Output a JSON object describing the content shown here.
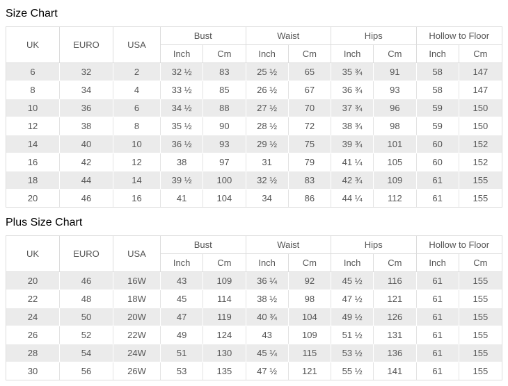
{
  "colors": {
    "page_background": "#ffffff",
    "stripe_row_background": "#ebebeb",
    "table_border": "#dcdcdc",
    "table_text": "#555555",
    "title_text": "#000000"
  },
  "tables": [
    {
      "title": "Size Chart",
      "header": {
        "uk": "UK",
        "euro": "EURO",
        "usa": "USA",
        "groups": [
          "Bust",
          "Waist",
          "Hips",
          "Hollow to Floor"
        ],
        "sub_units": [
          "Inch",
          "Cm"
        ]
      },
      "rows": [
        [
          "6",
          "32",
          "2",
          "32 ½",
          "83",
          "25 ½",
          "65",
          "35 ¾",
          "91",
          "58",
          "147"
        ],
        [
          "8",
          "34",
          "4",
          "33 ½",
          "85",
          "26 ½",
          "67",
          "36 ¾",
          "93",
          "58",
          "147"
        ],
        [
          "10",
          "36",
          "6",
          "34 ½",
          "88",
          "27 ½",
          "70",
          "37 ¾",
          "96",
          "59",
          "150"
        ],
        [
          "12",
          "38",
          "8",
          "35 ½",
          "90",
          "28 ½",
          "72",
          "38 ¾",
          "98",
          "59",
          "150"
        ],
        [
          "14",
          "40",
          "10",
          "36 ½",
          "93",
          "29 ½",
          "75",
          "39 ¾",
          "101",
          "60",
          "152"
        ],
        [
          "16",
          "42",
          "12",
          "38",
          "97",
          "31",
          "79",
          "41 ¼",
          "105",
          "60",
          "152"
        ],
        [
          "18",
          "44",
          "14",
          "39 ½",
          "100",
          "32 ½",
          "83",
          "42 ¾",
          "109",
          "61",
          "155"
        ],
        [
          "20",
          "46",
          "16",
          "41",
          "104",
          "34",
          "86",
          "44 ¼",
          "112",
          "61",
          "155"
        ]
      ]
    },
    {
      "title": "Plus Size Chart",
      "header": {
        "uk": "UK",
        "euro": "EURO",
        "usa": "USA",
        "groups": [
          "Bust",
          "Waist",
          "Hips",
          "Hollow to Floor"
        ],
        "sub_units": [
          "Inch",
          "Cm"
        ]
      },
      "rows": [
        [
          "20",
          "46",
          "16W",
          "43",
          "109",
          "36 ¼",
          "92",
          "45 ½",
          "116",
          "61",
          "155"
        ],
        [
          "22",
          "48",
          "18W",
          "45",
          "114",
          "38 ½",
          "98",
          "47 ½",
          "121",
          "61",
          "155"
        ],
        [
          "24",
          "50",
          "20W",
          "47",
          "119",
          "40 ¾",
          "104",
          "49 ½",
          "126",
          "61",
          "155"
        ],
        [
          "26",
          "52",
          "22W",
          "49",
          "124",
          "43",
          "109",
          "51 ½",
          "131",
          "61",
          "155"
        ],
        [
          "28",
          "54",
          "24W",
          "51",
          "130",
          "45 ¼",
          "115",
          "53 ½",
          "136",
          "61",
          "155"
        ],
        [
          "30",
          "56",
          "26W",
          "53",
          "135",
          "47 ½",
          "121",
          "55 ½",
          "141",
          "61",
          "155"
        ]
      ]
    }
  ]
}
